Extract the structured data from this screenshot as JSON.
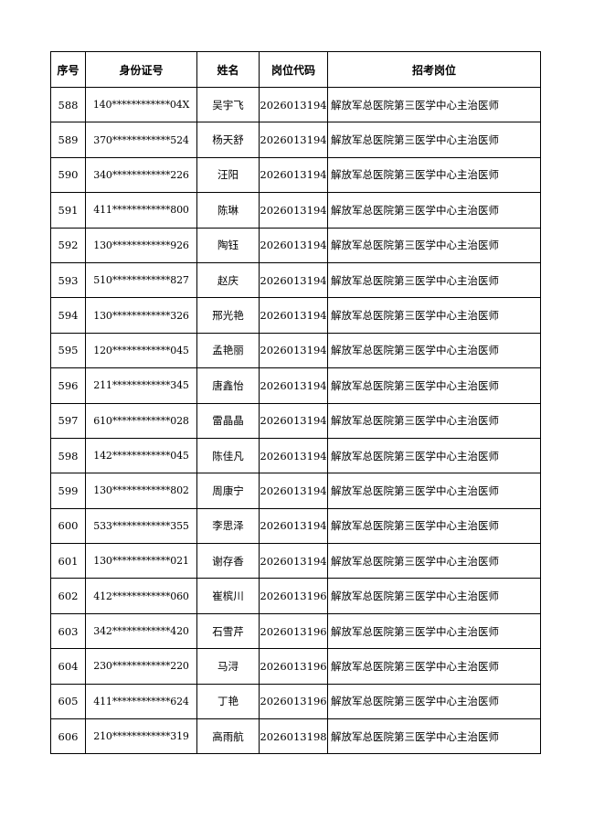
{
  "table": {
    "headers": [
      "序号",
      "身份证号",
      "姓名",
      "岗位代码",
      "招考岗位"
    ],
    "rows": [
      [
        "588",
        "140************04X",
        "吴宇飞",
        "2026013194",
        "解放军总医院第三医学中心主治医师"
      ],
      [
        "589",
        "370************524",
        "杨天舒",
        "2026013194",
        "解放军总医院第三医学中心主治医师"
      ],
      [
        "590",
        "340************226",
        "汪阳",
        "2026013194",
        "解放军总医院第三医学中心主治医师"
      ],
      [
        "591",
        "411************800",
        "陈琳",
        "2026013194",
        "解放军总医院第三医学中心主治医师"
      ],
      [
        "592",
        "130************926",
        "陶钰",
        "2026013194",
        "解放军总医院第三医学中心主治医师"
      ],
      [
        "593",
        "510************827",
        "赵庆",
        "2026013194",
        "解放军总医院第三医学中心主治医师"
      ],
      [
        "594",
        "130************326",
        "邢光艳",
        "2026013194",
        "解放军总医院第三医学中心主治医师"
      ],
      [
        "595",
        "120************045",
        "孟艳丽",
        "2026013194",
        "解放军总医院第三医学中心主治医师"
      ],
      [
        "596",
        "211************345",
        "唐鑫怡",
        "2026013194",
        "解放军总医院第三医学中心主治医师"
      ],
      [
        "597",
        "610************028",
        "雷晶晶",
        "2026013194",
        "解放军总医院第三医学中心主治医师"
      ],
      [
        "598",
        "142************045",
        "陈佳凡",
        "2026013194",
        "解放军总医院第三医学中心主治医师"
      ],
      [
        "599",
        "130************802",
        "周康宁",
        "2026013194",
        "解放军总医院第三医学中心主治医师"
      ],
      [
        "600",
        "533************355",
        "李思泽",
        "2026013194",
        "解放军总医院第三医学中心主治医师"
      ],
      [
        "601",
        "130************021",
        "谢存香",
        "2026013194",
        "解放军总医院第三医学中心主治医师"
      ],
      [
        "602",
        "412************060",
        "崔槟川",
        "2026013196",
        "解放军总医院第三医学中心主治医师"
      ],
      [
        "603",
        "342************420",
        "石雪芹",
        "2026013196",
        "解放军总医院第三医学中心主治医师"
      ],
      [
        "604",
        "230************220",
        "马浔",
        "2026013196",
        "解放军总医院第三医学中心主治医师"
      ],
      [
        "605",
        "411************624",
        "丁艳",
        "2026013196",
        "解放军总医院第三医学中心主治医师"
      ],
      [
        "606",
        "210************319",
        "高雨航",
        "2026013198",
        "解放军总医院第三医学中心主治医师"
      ]
    ]
  }
}
